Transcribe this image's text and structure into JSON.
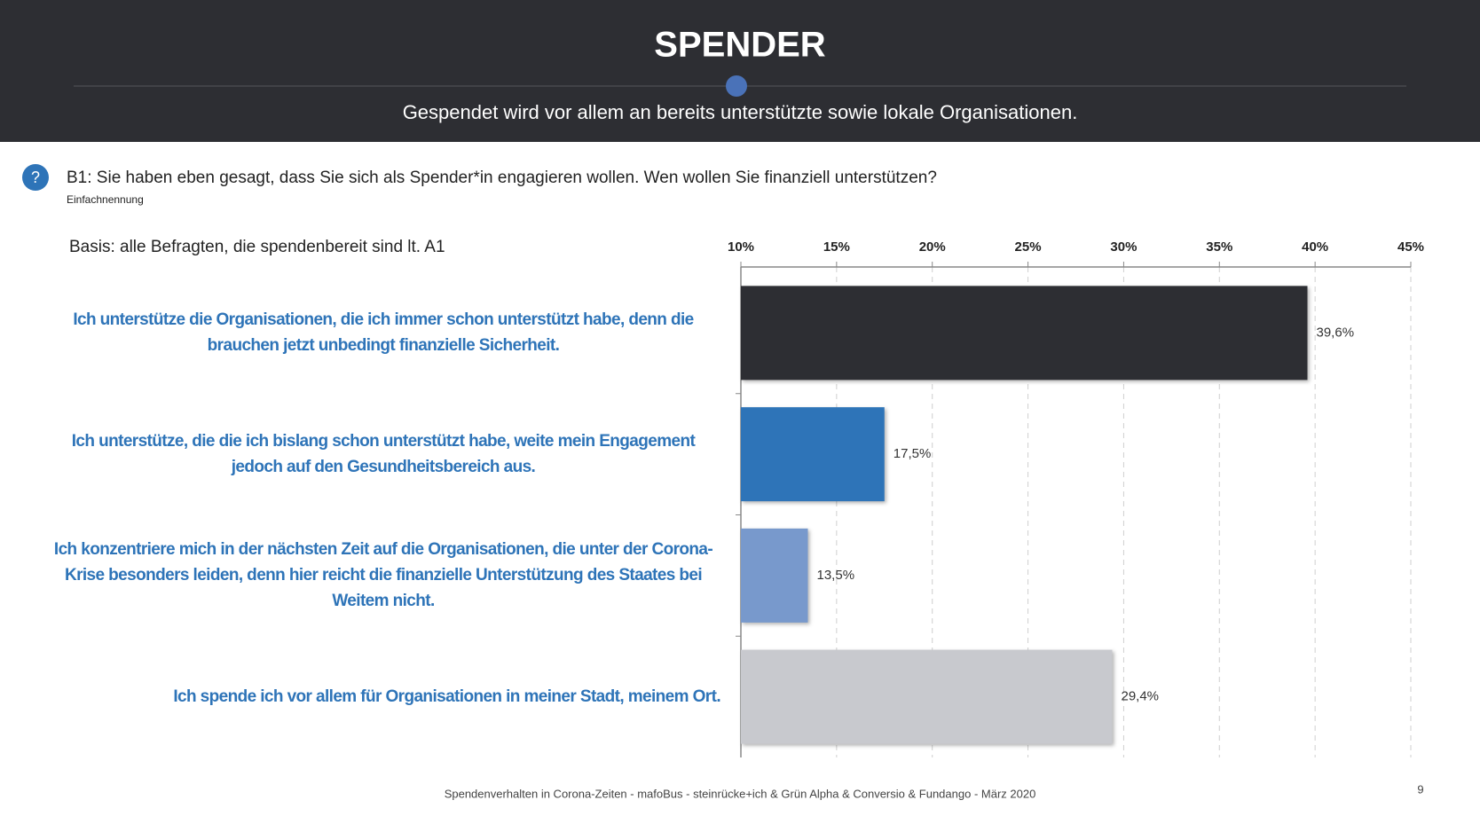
{
  "chart_data": {
    "type": "hbar",
    "title": "SPENDER",
    "subtitle": "Gespendet wird vor allem an bereits unterstützte sowie lokale Organisationen.",
    "question": "B1: Sie haben eben gesagt, dass Sie sich als Spender*in engagieren wollen. Wen wollen Sie finanziell unterstützen?",
    "note": "Einfachnennung",
    "basis": "Basis: alle Befragten, die spendenbereit sind lt. A1",
    "footer": "Spendenverhalten  in Corona-Zeiten - mafoBus - steinrücke+ich & Grün Alpha & Conversio & Fundango - März 2020",
    "page_number": "9",
    "categories": [
      "Ich unterstütze die Organisationen, die ich immer schon unterstützt habe, denn die brauchen jetzt unbedingt finanzielle Sicherheit.",
      "Ich unterstütze, die die ich bislang schon unterstützt habe, weite mein Engagement jedoch auf den Gesundheitsbereich aus.",
      "Ich konzentriere mich in der nächsten Zeit auf die Organisationen, die unter der Corona-Krise besonders leiden, denn hier reicht die finanzielle Unterstützung des Staates bei Weitem nicht.",
      "Ich spende ich vor allem für Organisationen in meiner Stadt, meinem Ort."
    ],
    "values": [
      39.6,
      17.5,
      13.5,
      29.4
    ],
    "value_labels": [
      "39,6%",
      "17,5%",
      "13,5%",
      "29,4%"
    ],
    "colors": [
      "#2d2e33",
      "#2e74b8",
      "#7899cc",
      "#c8c9ce"
    ],
    "xlim": [
      10,
      45
    ],
    "xticks": [
      {
        "value": 10,
        "label": "10%"
      },
      {
        "value": 15,
        "label": "15%"
      },
      {
        "value": 20,
        "label": "20%"
      },
      {
        "value": 25,
        "label": "25%"
      },
      {
        "value": 30,
        "label": "30%"
      },
      {
        "value": 35,
        "label": "35%"
      },
      {
        "value": 40,
        "label": "40%"
      },
      {
        "value": 45,
        "label": "45%"
      }
    ],
    "grid": true
  }
}
